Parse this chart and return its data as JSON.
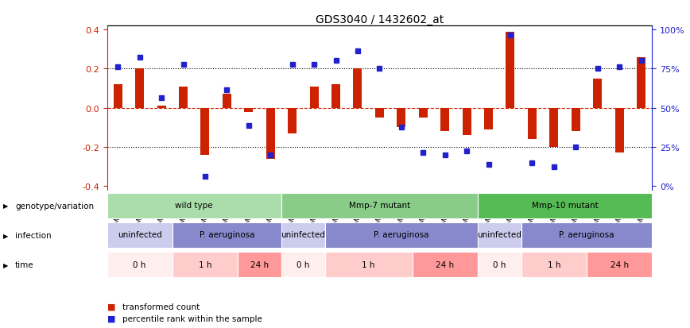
{
  "title": "GDS3040 / 1432602_at",
  "samples": [
    "GSM196062",
    "GSM196063",
    "GSM196064",
    "GSM196065",
    "GSM196066",
    "GSM196067",
    "GSM196068",
    "GSM196069",
    "GSM196070",
    "GSM196071",
    "GSM196072",
    "GSM196073",
    "GSM196074",
    "GSM196075",
    "GSM196076",
    "GSM196077",
    "GSM196078",
    "GSM196079",
    "GSM196080",
    "GSM196081",
    "GSM196082",
    "GSM196083",
    "GSM196084",
    "GSM196085",
    "GSM196086"
  ],
  "red_values": [
    0.12,
    0.2,
    0.01,
    0.11,
    -0.24,
    0.07,
    -0.02,
    -0.26,
    -0.13,
    0.11,
    0.12,
    0.2,
    -0.05,
    -0.1,
    -0.05,
    -0.12,
    -0.14,
    -0.11,
    0.39,
    -0.16,
    -0.2,
    -0.12,
    0.15,
    -0.23,
    0.26
  ],
  "blue_values": [
    0.21,
    0.26,
    0.05,
    0.22,
    -0.35,
    0.09,
    -0.09,
    -0.24,
    0.22,
    0.22,
    0.24,
    0.29,
    0.2,
    -0.1,
    -0.23,
    -0.24,
    -0.22,
    -0.29,
    0.37,
    -0.28,
    -0.3,
    -0.2,
    0.2,
    0.21,
    0.24
  ],
  "ylim": [
    -0.42,
    0.42
  ],
  "yticks": [
    -0.4,
    -0.2,
    0.0,
    0.2,
    0.4
  ],
  "right_tick_positions": [
    -0.4,
    -0.2,
    0.0,
    0.2,
    0.4
  ],
  "right_tick_labels": [
    "0%",
    "25%",
    "50%",
    "75%",
    "100%"
  ],
  "genotype_groups": [
    {
      "label": "wild type",
      "start": 0,
      "end": 8,
      "color": "#aaddaa"
    },
    {
      "label": "Mmp-7 mutant",
      "start": 8,
      "end": 17,
      "color": "#88cc88"
    },
    {
      "label": "Mmp-10 mutant",
      "start": 17,
      "end": 25,
      "color": "#55bb55"
    }
  ],
  "infection_groups": [
    {
      "label": "uninfected",
      "start": 0,
      "end": 3,
      "color": "#ccccee"
    },
    {
      "label": "P. aeruginosa",
      "start": 3,
      "end": 8,
      "color": "#8888cc"
    },
    {
      "label": "uninfected",
      "start": 8,
      "end": 10,
      "color": "#ccccee"
    },
    {
      "label": "P. aeruginosa",
      "start": 10,
      "end": 17,
      "color": "#8888cc"
    },
    {
      "label": "uninfected",
      "start": 17,
      "end": 19,
      "color": "#ccccee"
    },
    {
      "label": "P. aeruginosa",
      "start": 19,
      "end": 25,
      "color": "#8888cc"
    }
  ],
  "time_groups": [
    {
      "label": "0 h",
      "start": 0,
      "end": 3,
      "color": "#ffeeee"
    },
    {
      "label": "1 h",
      "start": 3,
      "end": 6,
      "color": "#ffcccc"
    },
    {
      "label": "24 h",
      "start": 6,
      "end": 8,
      "color": "#ff9999"
    },
    {
      "label": "0 h",
      "start": 8,
      "end": 10,
      "color": "#ffeeee"
    },
    {
      "label": "1 h",
      "start": 10,
      "end": 14,
      "color": "#ffcccc"
    },
    {
      "label": "24 h",
      "start": 14,
      "end": 17,
      "color": "#ff9999"
    },
    {
      "label": "0 h",
      "start": 17,
      "end": 19,
      "color": "#ffeeee"
    },
    {
      "label": "1 h",
      "start": 19,
      "end": 22,
      "color": "#ffcccc"
    },
    {
      "label": "24 h",
      "start": 22,
      "end": 25,
      "color": "#ff9999"
    }
  ],
  "row_labels": [
    "genotype/variation",
    "infection",
    "time"
  ],
  "legend_red_label": "transformed count",
  "legend_blue_label": "percentile rank within the sample",
  "red_color": "#cc2200",
  "blue_color": "#2222cc",
  "bar_width": 0.4,
  "marker_size": 4
}
